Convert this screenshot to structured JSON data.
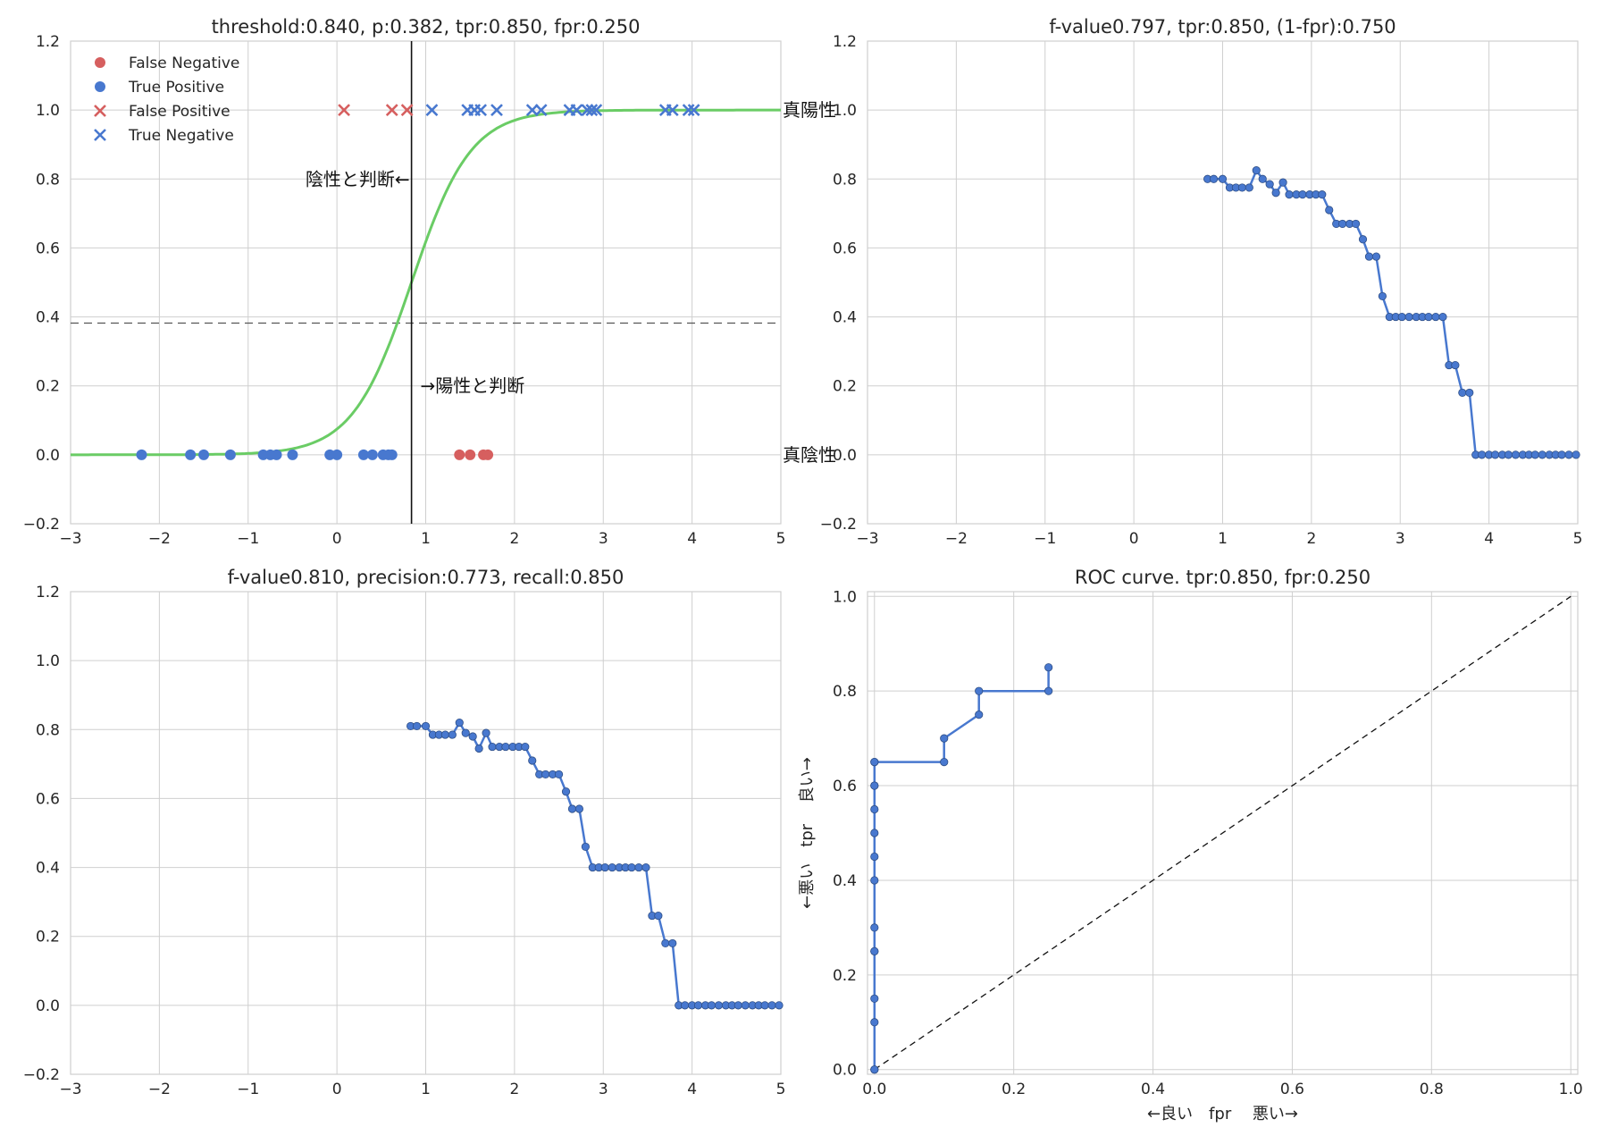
{
  "chart_data": [
    {
      "id": "classification",
      "type": "scatter",
      "title": "threshold:0.840, p:0.382, tpr:0.850, fpr:0.250",
      "xlim": [
        -3,
        5
      ],
      "ylim": [
        -0.2,
        1.2
      ],
      "xticks": [
        -3,
        -2,
        -1,
        0,
        1,
        2,
        3,
        4,
        5
      ],
      "xtick_labels": [
        "−3",
        "−2",
        "−1",
        "0",
        "1",
        "2",
        "3",
        "4",
        "5"
      ],
      "yticks": [
        -0.2,
        0.0,
        0.2,
        0.4,
        0.6,
        0.8,
        1.0,
        1.2
      ],
      "ytick_labels": [
        "−0.2",
        "0.0",
        "0.2",
        "0.4",
        "0.6",
        "0.8",
        "1.0",
        "1.2"
      ],
      "grid": true,
      "legend_position": "top-left",
      "threshold_x": 0.84,
      "p_level": 0.382,
      "sigmoid": {
        "color": "#6acc65",
        "center": 0.84,
        "steepness": 3.0
      },
      "series": [
        {
          "name": "False Negative",
          "marker": "circle",
          "color": "#d65f5f",
          "x": [
            1.38,
            1.5,
            1.65,
            1.7
          ],
          "y": [
            0,
            0,
            0,
            0
          ]
        },
        {
          "name": "True Positive",
          "marker": "circle",
          "color": "#4878cf",
          "x": [
            -2.2,
            -1.65,
            -1.5,
            -1.2,
            -0.83,
            -0.75,
            -0.68,
            -0.5,
            -0.08,
            0.0,
            0.3,
            0.4,
            0.52,
            0.58,
            0.62
          ],
          "y": [
            0,
            0,
            0,
            0,
            0,
            0,
            0,
            0,
            0,
            0,
            0,
            0,
            0,
            0,
            0
          ]
        },
        {
          "name": "False Positive",
          "marker": "x",
          "color": "#d65f5f",
          "x": [
            0.08,
            0.62,
            0.79
          ],
          "y": [
            1,
            1,
            1
          ]
        },
        {
          "name": "True Negative",
          "marker": "x",
          "color": "#4878cf",
          "x": [
            1.07,
            1.47,
            1.55,
            1.62,
            1.8,
            2.2,
            2.3,
            2.62,
            2.7,
            2.82,
            2.87,
            2.92,
            3.7,
            3.78,
            3.96,
            4.02
          ],
          "y": [
            1,
            1,
            1,
            1,
            1,
            1,
            1,
            1,
            1,
            1,
            1,
            1,
            1,
            1,
            1,
            1
          ]
        }
      ],
      "annotations": [
        {
          "text": "陰性と判断←",
          "x": 0.82,
          "y": 0.8,
          "anchor": "end"
        },
        {
          "text": "→陽性と判断",
          "x": 0.92,
          "y": 0.2,
          "anchor": "start"
        },
        {
          "text": "真陽性",
          "x": 5.0,
          "y": 1.0,
          "anchor": "start"
        },
        {
          "text": "真陰性",
          "x": 5.0,
          "y": 0.0,
          "anchor": "start"
        }
      ]
    },
    {
      "id": "fvalue_tpr",
      "type": "line",
      "title": "f-value0.797,  tpr:0.850, (1-fpr):0.750",
      "xlim": [
        -3,
        5
      ],
      "ylim": [
        -0.2,
        1.2
      ],
      "xticks": [
        -3,
        -2,
        -1,
        0,
        1,
        2,
        3,
        4,
        5
      ],
      "xtick_labels": [
        "−3",
        "−2",
        "−1",
        "0",
        "1",
        "2",
        "3",
        "4",
        "5"
      ],
      "yticks": [
        -0.2,
        0.0,
        0.2,
        0.4,
        0.6,
        0.8,
        1.0,
        1.2
      ],
      "ytick_labels": [
        "−0.2",
        "0.0",
        "0.2",
        "0.4",
        "0.6",
        "0.8",
        "1.0",
        "1.2"
      ],
      "grid": true,
      "series": [
        {
          "color": "#4878cf",
          "x": [
            0.83,
            0.9,
            1.0,
            1.08,
            1.15,
            1.22,
            1.3,
            1.38,
            1.45,
            1.53,
            1.6,
            1.68,
            1.75,
            1.83,
            1.9,
            1.98,
            2.05,
            2.12,
            2.2,
            2.28,
            2.35,
            2.43,
            2.5,
            2.58,
            2.65,
            2.73,
            2.8,
            2.88,
            2.95,
            3.02,
            3.1,
            3.18,
            3.25,
            3.32,
            3.4,
            3.48,
            3.55,
            3.62,
            3.7,
            3.78,
            3.85,
            3.92,
            4.0,
            4.07,
            4.15,
            4.22,
            4.3,
            4.38,
            4.45,
            4.52,
            4.6,
            4.68,
            4.75,
            4.82,
            4.9,
            4.98
          ],
          "y": [
            0.8,
            0.8,
            0.8,
            0.775,
            0.775,
            0.775,
            0.775,
            0.825,
            0.8,
            0.785,
            0.76,
            0.79,
            0.755,
            0.755,
            0.755,
            0.755,
            0.755,
            0.755,
            0.71,
            0.67,
            0.67,
            0.67,
            0.67,
            0.625,
            0.575,
            0.575,
            0.46,
            0.4,
            0.4,
            0.4,
            0.4,
            0.4,
            0.4,
            0.4,
            0.4,
            0.4,
            0.26,
            0.26,
            0.18,
            0.18,
            0.0,
            0.0,
            0.0,
            0.0,
            0.0,
            0.0,
            0.0,
            0.0,
            0.0,
            0.0,
            0.0,
            0.0,
            0.0,
            0.0,
            0.0,
            0.0
          ]
        }
      ]
    },
    {
      "id": "fvalue_precision",
      "type": "line",
      "title": "f-value0.810,  precision:0.773, recall:0.850",
      "xlim": [
        -3,
        5
      ],
      "ylim": [
        -0.2,
        1.2
      ],
      "xticks": [
        -3,
        -2,
        -1,
        0,
        1,
        2,
        3,
        4,
        5
      ],
      "xtick_labels": [
        "−3",
        "−2",
        "−1",
        "0",
        "1",
        "2",
        "3",
        "4",
        "5"
      ],
      "yticks": [
        -0.2,
        0.0,
        0.2,
        0.4,
        0.6,
        0.8,
        1.0,
        1.2
      ],
      "ytick_labels": [
        "−0.2",
        "0.0",
        "0.2",
        "0.4",
        "0.6",
        "0.8",
        "1.0",
        "1.2"
      ],
      "grid": true,
      "series": [
        {
          "color": "#4878cf",
          "x": [
            0.83,
            0.9,
            1.0,
            1.08,
            1.15,
            1.22,
            1.3,
            1.38,
            1.45,
            1.53,
            1.6,
            1.68,
            1.75,
            1.83,
            1.9,
            1.98,
            2.05,
            2.12,
            2.2,
            2.28,
            2.35,
            2.43,
            2.5,
            2.58,
            2.65,
            2.73,
            2.8,
            2.88,
            2.95,
            3.02,
            3.1,
            3.18,
            3.25,
            3.32,
            3.4,
            3.48,
            3.55,
            3.62,
            3.7,
            3.78,
            3.85,
            3.92,
            4.0,
            4.07,
            4.15,
            4.22,
            4.3,
            4.38,
            4.45,
            4.52,
            4.6,
            4.68,
            4.75,
            4.82,
            4.9,
            4.98
          ],
          "y": [
            0.81,
            0.81,
            0.81,
            0.785,
            0.785,
            0.785,
            0.785,
            0.82,
            0.79,
            0.78,
            0.745,
            0.79,
            0.75,
            0.75,
            0.75,
            0.75,
            0.75,
            0.75,
            0.71,
            0.67,
            0.67,
            0.67,
            0.67,
            0.62,
            0.57,
            0.57,
            0.46,
            0.4,
            0.4,
            0.4,
            0.4,
            0.4,
            0.4,
            0.4,
            0.4,
            0.4,
            0.26,
            0.26,
            0.18,
            0.18,
            0.0,
            0.0,
            0.0,
            0.0,
            0.0,
            0.0,
            0.0,
            0.0,
            0.0,
            0.0,
            0.0,
            0.0,
            0.0,
            0.0,
            0.0,
            0.0
          ]
        }
      ]
    },
    {
      "id": "roc",
      "type": "line",
      "title": "ROC curve. tpr:0.850, fpr:0.250",
      "xlabel": "←良い　fpr　 悪い→",
      "ylabel": "←悪い　tpr　 良い→",
      "xlim": [
        -0.01,
        1.01
      ],
      "ylim": [
        -0.01,
        1.01
      ],
      "xticks": [
        0.0,
        0.2,
        0.4,
        0.6,
        0.8,
        1.0
      ],
      "xtick_labels": [
        "0.0",
        "0.2",
        "0.4",
        "0.6",
        "0.8",
        "1.0"
      ],
      "yticks": [
        0.0,
        0.2,
        0.4,
        0.6,
        0.8,
        1.0
      ],
      "ytick_labels": [
        "0.0",
        "0.2",
        "0.4",
        "0.6",
        "0.8",
        "1.0"
      ],
      "grid": true,
      "diagonal": true,
      "series": [
        {
          "color": "#4878cf",
          "x": [
            0.0,
            0.0,
            0.0,
            0.0,
            0.0,
            0.0,
            0.0,
            0.0,
            0.0,
            0.0,
            0.0,
            0.0,
            0.0,
            0.0,
            0.0,
            0.1,
            0.1,
            0.15,
            0.15,
            0.25,
            0.25
          ],
          "y": [
            0.0,
            0.0,
            0.1,
            0.15,
            0.25,
            0.25,
            0.3,
            0.4,
            0.45,
            0.5,
            0.55,
            0.6,
            0.6,
            0.65,
            0.65,
            0.65,
            0.7,
            0.75,
            0.8,
            0.8,
            0.85
          ]
        }
      ]
    }
  ]
}
